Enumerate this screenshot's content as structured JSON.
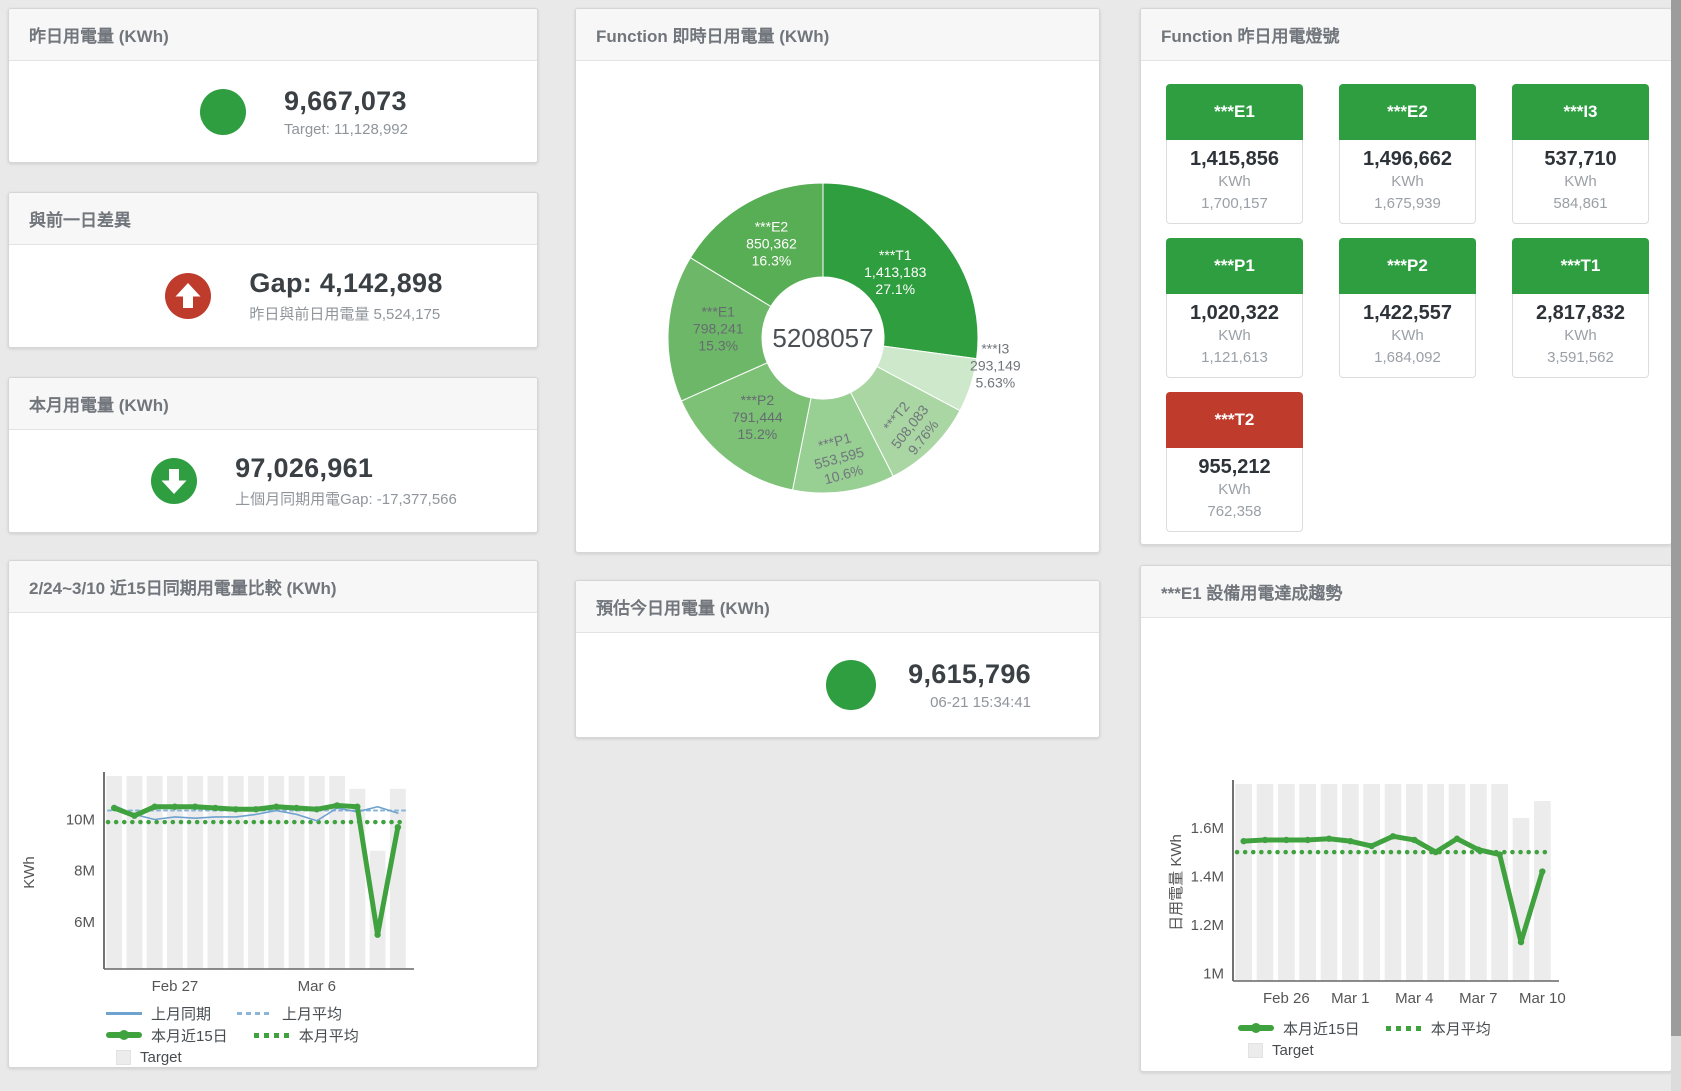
{
  "colors": {
    "accent_green": "#2f9e41",
    "alert_red": "#bf3b2b",
    "line_green": "#3fa23f",
    "line_blue": "#6fa3cf",
    "line_blue_light": "#8ab4d8",
    "bar_gray": "#ececec"
  },
  "panels": {
    "yesterday": {
      "title": "昨日用電量 (KWh)",
      "value": "9,667,073",
      "subtitle": "Target: 11,128,992",
      "indicator": {
        "shape": "circle",
        "color": "#2f9e41",
        "size": 46
      }
    },
    "gap": {
      "title": "與前一日差異",
      "value": "Gap: 4,142,898",
      "subtitle": "昨日與前日用電量 5,524,175",
      "indicator": {
        "shape": "arrow-up",
        "color": "#bf3b2b",
        "size": 46
      }
    },
    "month": {
      "title": "本月用電量 (KWh)",
      "value": "97,026,961",
      "subtitle": "上個月同期用電Gap: -17,377,566",
      "indicator": {
        "shape": "arrow-down",
        "color": "#2f9e41",
        "size": 46
      }
    },
    "estimate": {
      "title": "預估今日用電量 (KWh)",
      "value": "9,615,796",
      "subtitle": "06-21 15:34:41",
      "indicator": {
        "shape": "circle",
        "color": "#2f9e41",
        "size": 50
      }
    },
    "donut": {
      "title": "Function 即時日用電量 (KWh)"
    },
    "lights": {
      "title": "Function 昨日用電燈號",
      "tiles": [
        {
          "name": "***E1",
          "value": "1,415,856",
          "unit": "KWh",
          "target": "1,700,157",
          "status_color": "#2f9e41"
        },
        {
          "name": "***E2",
          "value": "1,496,662",
          "unit": "KWh",
          "target": "1,675,939",
          "status_color": "#2f9e41"
        },
        {
          "name": "***I3",
          "value": "537,710",
          "unit": "KWh",
          "target": "584,861",
          "status_color": "#2f9e41"
        },
        {
          "name": "***P1",
          "value": "1,020,322",
          "unit": "KWh",
          "target": "1,121,613",
          "status_color": "#2f9e41"
        },
        {
          "name": "***P2",
          "value": "1,422,557",
          "unit": "KWh",
          "target": "1,684,092",
          "status_color": "#2f9e41"
        },
        {
          "name": "***T1",
          "value": "2,817,832",
          "unit": "KWh",
          "target": "3,591,562",
          "status_color": "#2f9e41"
        },
        {
          "name": "***T2",
          "value": "955,212",
          "unit": "KWh",
          "target": "762,358",
          "status_color": "#bf3b2b"
        }
      ]
    },
    "compare": {
      "title": "2/24~3/10 近15日同期用電量比較 (KWh)",
      "legend_rows": [
        [
          {
            "t": "line",
            "c": "#6fa3cf",
            "label": "上月同期"
          },
          {
            "t": "dash",
            "c": "#8ab4d8",
            "label": "上月平均"
          }
        ],
        [
          {
            "t": "thick",
            "c": "#3fa23f",
            "label": "本月近15日"
          },
          {
            "t": "dots",
            "c": "#3fa23f",
            "label": "本月平均"
          }
        ],
        [
          {
            "t": "square",
            "c": "#ececec",
            "label": "Target"
          }
        ]
      ]
    },
    "trend": {
      "title": "***E1 設備用電達成趨勢",
      "legend_rows": [
        [
          {
            "t": "thick",
            "c": "#3fa23f",
            "label": "本月近15日"
          },
          {
            "t": "dots",
            "c": "#3fa23f",
            "label": "本月平均"
          }
        ],
        [
          {
            "t": "square",
            "c": "#ececec",
            "label": "Target"
          }
        ]
      ]
    }
  },
  "chart_data": [
    {
      "id": "donut",
      "type": "pie",
      "title": "Function 即時日用電量 (KWh)",
      "center_total": "5208057",
      "slices": [
        {
          "label": "***T1",
          "value": 1413183,
          "display": "1,413,183",
          "pct": "27.1%",
          "color": "#2f9e3f",
          "text": "#ffffff",
          "lr": 96,
          "rot": 0
        },
        {
          "label": "***I3",
          "value": 293149,
          "display": "293,149",
          "pct": "5.63%",
          "color": "#cde8ca",
          "text": "#70767c",
          "outside": true,
          "la": 100,
          "lr": 175,
          "rot": 0
        },
        {
          "label": "***T2",
          "value": 508083,
          "display": "508,083",
          "pct": "9.76%",
          "color": "#a9d6a3",
          "text": "#70767c",
          "lr": 127,
          "rot": -52
        },
        {
          "label": "***P1",
          "value": 553595,
          "display": "553,595",
          "pct": "10.6%",
          "color": "#98cf93",
          "text": "#70767c",
          "lr": 124,
          "rot": -15
        },
        {
          "label": "***P2",
          "value": 791444,
          "display": "791,444",
          "pct": "15.2%",
          "color": "#7dc177",
          "text": "#666b70",
          "lr": 105,
          "rot": 0
        },
        {
          "label": "***E1",
          "value": 798241,
          "display": "798,241",
          "pct": "15.3%",
          "color": "#6db868",
          "text": "#666b70",
          "lr": 105,
          "rot": 0
        },
        {
          "label": "***E2",
          "value": 850362,
          "display": "850,362",
          "pct": "16.3%",
          "color": "#58ae54",
          "text": "#ffffff",
          "lr": 105,
          "rot": 0
        }
      ]
    },
    {
      "id": "compare",
      "type": "line",
      "title": "2/24~3/10 近15日同期用電量比較 (KWh)",
      "ylabel": "KWh",
      "unit": "millions of KWh",
      "n": 15,
      "ylim": [
        4.16,
        11.7
      ],
      "yticks": [
        {
          "v": 6,
          "label": "6M"
        },
        {
          "v": 8,
          "label": "8M"
        },
        {
          "v": 10,
          "label": "10M"
        }
      ],
      "xticks": [
        {
          "i": 3,
          "label": "Feb 27"
        },
        {
          "i": 10,
          "label": "Mar 6"
        }
      ],
      "bars": {
        "name": "Target",
        "color": "#ececec",
        "values": [
          11.7,
          11.7,
          11.7,
          11.7,
          11.7,
          11.7,
          11.7,
          11.7,
          11.7,
          11.7,
          11.7,
          11.7,
          11.2,
          8.78,
          11.2
        ]
      },
      "series": [
        {
          "name": "上月同期",
          "color": "#6fa3cf",
          "width": 1.6,
          "dash": null,
          "markers": false,
          "values": [
            10.55,
            10.2,
            10.0,
            10.1,
            10.05,
            10.1,
            10.1,
            10.2,
            10.35,
            10.2,
            9.95,
            10.45,
            10.3,
            10.5,
            10.25
          ]
        },
        {
          "name": "本月近15日",
          "color": "#3fa23f",
          "width": 5,
          "dash": null,
          "markers": true,
          "values": [
            10.45,
            10.15,
            10.5,
            10.5,
            10.5,
            10.45,
            10.4,
            10.4,
            10.5,
            10.45,
            10.4,
            10.55,
            10.5,
            5.5,
            9.7
          ]
        }
      ],
      "hlines": [
        {
          "name": "上月平均",
          "color": "#8ab4d8",
          "width": 2,
          "dash": "3,4",
          "value": 10.35
        },
        {
          "name": "本月平均",
          "color": "#3fa23f",
          "width": 4.5,
          "dash": "0.1,8",
          "value": 9.9
        }
      ]
    },
    {
      "id": "trend",
      "type": "line",
      "title": "***E1 設備用電達成趨勢",
      "ylabel": "日用電量 KWh",
      "unit": "millions of KWh",
      "n": 15,
      "ylim": [
        0.97,
        1.78
      ],
      "yticks": [
        {
          "v": 1,
          "label": "1M"
        },
        {
          "v": 1.2,
          "label": "1.2M"
        },
        {
          "v": 1.4,
          "label": "1.4M"
        },
        {
          "v": 1.6,
          "label": "1.6M"
        }
      ],
      "xticks": [
        {
          "i": 2,
          "label": "Feb 26"
        },
        {
          "i": 5,
          "label": "Mar 1"
        },
        {
          "i": 8,
          "label": "Mar 4"
        },
        {
          "i": 11,
          "label": "Mar 7"
        },
        {
          "i": 14,
          "label": "Mar 10"
        }
      ],
      "bars": {
        "name": "Target",
        "color": "#ececec",
        "values": [
          1.78,
          1.78,
          1.78,
          1.78,
          1.78,
          1.78,
          1.78,
          1.78,
          1.78,
          1.78,
          1.78,
          1.78,
          1.78,
          1.64,
          1.71
        ]
      },
      "series": [
        {
          "name": "本月近15日",
          "color": "#3fa23f",
          "width": 5,
          "dash": null,
          "markers": true,
          "values": [
            1.545,
            1.55,
            1.55,
            1.55,
            1.555,
            1.545,
            1.525,
            1.565,
            1.55,
            1.5,
            1.555,
            1.51,
            1.49,
            1.13,
            1.42
          ]
        }
      ],
      "hlines": [
        {
          "name": "本月平均",
          "color": "#3fa23f",
          "width": 4.5,
          "dash": "0.1,8",
          "value": 1.5
        }
      ]
    }
  ]
}
